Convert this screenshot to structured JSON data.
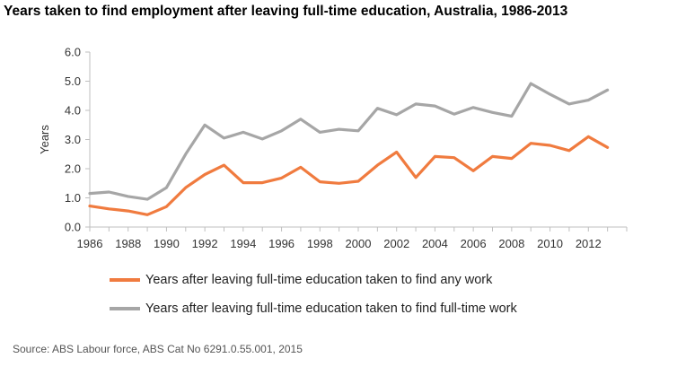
{
  "title": "Years taken to find employment after leaving full-time education, Australia, 1986-2013",
  "source": "Source: ABS Labour force, ABS Cat No 6291.0.55.001, 2015",
  "colors": {
    "any_work": "#f07b3f",
    "full_time_work": "#a6a6a6",
    "axis": "#bfbfbf",
    "text": "#333333"
  },
  "chart_data": {
    "type": "line",
    "ylabel": "Years",
    "xlabel": "",
    "ylim": [
      0,
      6
    ],
    "xlim": [
      1986,
      2014
    ],
    "y_ticks": [
      "0.0",
      "1.0",
      "2.0",
      "3.0",
      "4.0",
      "5.0",
      "6.0"
    ],
    "x_ticks": [
      "1986",
      "1988",
      "1990",
      "1992",
      "1994",
      "1996",
      "1998",
      "2000",
      "2002",
      "2004",
      "2006",
      "2008",
      "2010",
      "2012"
    ],
    "grid": false,
    "legend_position": "bottom",
    "x": [
      1986,
      1987,
      1988,
      1989,
      1990,
      1991,
      1992,
      1993,
      1994,
      1995,
      1996,
      1997,
      1998,
      1999,
      2000,
      2001,
      2002,
      2003,
      2004,
      2005,
      2006,
      2007,
      2008,
      2009,
      2010,
      2011,
      2012,
      2013
    ],
    "series": [
      {
        "name": "Years after leaving full-time education taken to find any work",
        "color": "#f07b3f",
        "values": [
          0.72,
          0.62,
          0.55,
          0.42,
          0.7,
          1.35,
          1.8,
          2.12,
          1.52,
          1.52,
          1.68,
          2.05,
          1.55,
          1.5,
          1.57,
          2.12,
          2.57,
          1.7,
          2.42,
          2.38,
          1.93,
          2.42,
          2.35,
          2.87,
          2.8,
          2.62,
          3.1,
          2.73
        ]
      },
      {
        "name": "Years after leaving full-time education taken to find full-time work",
        "color": "#a6a6a6",
        "values": [
          1.15,
          1.2,
          1.05,
          0.95,
          1.35,
          2.5,
          3.5,
          3.05,
          3.25,
          3.02,
          3.3,
          3.7,
          3.25,
          3.35,
          3.3,
          4.07,
          3.85,
          4.22,
          4.15,
          3.87,
          4.1,
          3.93,
          3.8,
          4.92,
          4.55,
          4.22,
          4.35,
          4.7
        ]
      }
    ]
  }
}
